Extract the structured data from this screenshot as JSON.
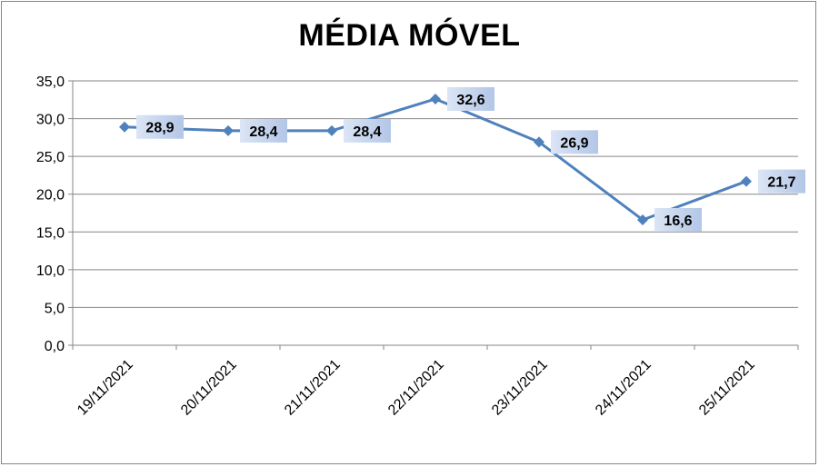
{
  "chart_data": {
    "type": "line",
    "title": "MÉDIA MÓVEL",
    "categories": [
      "19/11/2021",
      "20/11/2021",
      "21/11/2021",
      "22/11/2021",
      "23/11/2021",
      "24/11/2021",
      "25/11/2021"
    ],
    "values": [
      28.9,
      28.4,
      28.4,
      32.6,
      26.9,
      16.6,
      21.7
    ],
    "data_labels": [
      "28,9",
      "28,4",
      "28,4",
      "32,6",
      "26,9",
      "16,6",
      "21,7"
    ],
    "ylim": [
      0,
      35
    ],
    "yticks": [
      "0,0",
      "5,0",
      "10,0",
      "15,0",
      "20,0",
      "25,0",
      "30,0",
      "35,0"
    ],
    "grid": true,
    "legend": "none",
    "line_color": "#4F81BD",
    "label_bg": "#C6D4EC"
  }
}
